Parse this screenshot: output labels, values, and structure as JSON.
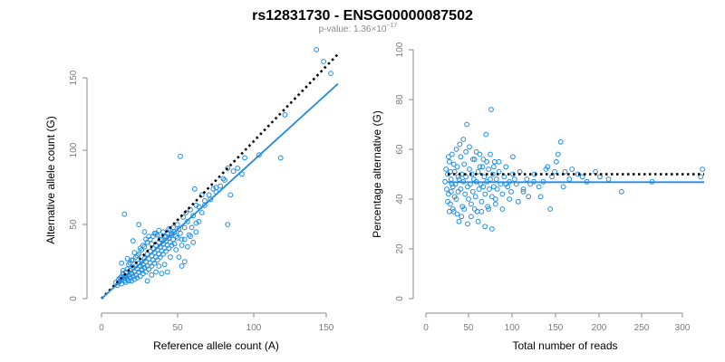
{
  "title": "rs12831730 - ENSG00000087502",
  "subtitle": {
    "prefix": "p-value: 1.36",
    "times": "×",
    "base": "10",
    "exponent": "−17"
  },
  "colors": {
    "points": "#1f8ce6",
    "fit": "#1f8ce6",
    "reference": "#000000",
    "axis": "#8a8a8a",
    "tick_text": "#7a7a7a"
  },
  "chart_data": [
    {
      "type": "scatter",
      "xlabel": "Reference allele count (A)",
      "ylabel": "Alternative allele count (G)",
      "xlim": [
        0,
        160
      ],
      "ylim": [
        0,
        160
      ],
      "xticks": [
        "0",
        "50",
        "100",
        "150"
      ],
      "yticks": [
        "0",
        "50",
        "100",
        "150"
      ],
      "grid": false,
      "lines": [
        {
          "style": "dotted",
          "color": "#000000",
          "x": [
            0,
            165
          ],
          "y": [
            0,
            165
          ]
        },
        {
          "style": "solid",
          "color": "#1f8ce6",
          "x": [
            0,
            165
          ],
          "y": [
            0,
            145
          ]
        }
      ],
      "points": [
        [
          10,
          11
        ],
        [
          11,
          9
        ],
        [
          12,
          13
        ],
        [
          12,
          11
        ],
        [
          13,
          14
        ],
        [
          13,
          12
        ],
        [
          14,
          15
        ],
        [
          14,
          10
        ],
        [
          15,
          13
        ],
        [
          15,
          17
        ],
        [
          16,
          14
        ],
        [
          16,
          12
        ],
        [
          17,
          18
        ],
        [
          17,
          15
        ],
        [
          17,
          11
        ],
        [
          18,
          13
        ],
        [
          18,
          20
        ],
        [
          19,
          16
        ],
        [
          19,
          12
        ],
        [
          20,
          19
        ],
        [
          20,
          14
        ],
        [
          20,
          24
        ],
        [
          21,
          17
        ],
        [
          21,
          12
        ],
        [
          22,
          21
        ],
        [
          22,
          15
        ],
        [
          22,
          26
        ],
        [
          23,
          18
        ],
        [
          23,
          13
        ],
        [
          24,
          22
        ],
        [
          24,
          16
        ],
        [
          24,
          28
        ],
        [
          25,
          20
        ],
        [
          25,
          14
        ],
        [
          26,
          24
        ],
        [
          26,
          18
        ],
        [
          26,
          30
        ],
        [
          27,
          22
        ],
        [
          27,
          15
        ],
        [
          28,
          25
        ],
        [
          28,
          19
        ],
        [
          28,
          33
        ],
        [
          29,
          23
        ],
        [
          29,
          17
        ],
        [
          30,
          27
        ],
        [
          30,
          21
        ],
        [
          30,
          35
        ],
        [
          31,
          25
        ],
        [
          31,
          18
        ],
        [
          32,
          30
        ],
        [
          32,
          22
        ],
        [
          32,
          38
        ],
        [
          33,
          27
        ],
        [
          33,
          20
        ],
        [
          34,
          32
        ],
        [
          34,
          24
        ],
        [
          34,
          40
        ],
        [
          35,
          29
        ],
        [
          35,
          22
        ],
        [
          36,
          34
        ],
        [
          36,
          26
        ],
        [
          36,
          42
        ],
        [
          37,
          31
        ],
        [
          37,
          24
        ],
        [
          38,
          36
        ],
        [
          38,
          28
        ],
        [
          38,
          44
        ],
        [
          39,
          33
        ],
        [
          39,
          26
        ],
        [
          40,
          38
        ],
        [
          40,
          30
        ],
        [
          40,
          46
        ],
        [
          41,
          35
        ],
        [
          41,
          28
        ],
        [
          42,
          40
        ],
        [
          42,
          32
        ],
        [
          43,
          37
        ],
        [
          43,
          30
        ],
        [
          44,
          42
        ],
        [
          44,
          34
        ],
        [
          45,
          39
        ],
        [
          45,
          32
        ],
        [
          46,
          44
        ],
        [
          46,
          36
        ],
        [
          47,
          41
        ],
        [
          47,
          34
        ],
        [
          48,
          46
        ],
        [
          48,
          38
        ],
        [
          49,
          43
        ],
        [
          49,
          36
        ],
        [
          50,
          48
        ],
        [
          50,
          40
        ],
        [
          51,
          45
        ],
        [
          52,
          42
        ],
        [
          53,
          50
        ],
        [
          54,
          47
        ],
        [
          55,
          44
        ],
        [
          56,
          40
        ],
        [
          57,
          55
        ],
        [
          58,
          48
        ],
        [
          59,
          58
        ],
        [
          60,
          52
        ],
        [
          62,
          60
        ],
        [
          64,
          56
        ],
        [
          66,
          63
        ],
        [
          68,
          62
        ],
        [
          70,
          70
        ],
        [
          72,
          66
        ],
        [
          75,
          70
        ],
        [
          78,
          74
        ],
        [
          80,
          72
        ],
        [
          83,
          76
        ],
        [
          86,
          80
        ],
        [
          88,
          88
        ],
        [
          90,
          70
        ],
        [
          95,
          88
        ],
        [
          100,
          95
        ],
        [
          110,
          97
        ],
        [
          125,
          95
        ],
        [
          128,
          124
        ],
        [
          150,
          168
        ],
        [
          155,
          160
        ],
        [
          160,
          152
        ],
        [
          16,
          57
        ],
        [
          18,
          27
        ],
        [
          22,
          39
        ],
        [
          26,
          50
        ],
        [
          28,
          20
        ],
        [
          30,
          45
        ],
        [
          32,
          12
        ],
        [
          35,
          16
        ],
        [
          38,
          18
        ],
        [
          40,
          22
        ],
        [
          42,
          17
        ],
        [
          44,
          23
        ],
        [
          46,
          18
        ],
        [
          48,
          28
        ],
        [
          52,
          33
        ],
        [
          54,
          28
        ],
        [
          56,
          22
        ],
        [
          58,
          25
        ],
        [
          60,
          35
        ],
        [
          62,
          42
        ],
        [
          64,
          38
        ],
        [
          66,
          45
        ],
        [
          68,
          52
        ],
        [
          70,
          58
        ],
        [
          72,
          63
        ],
        [
          76,
          67
        ],
        [
          80,
          75
        ],
        [
          85,
          81
        ],
        [
          92,
          86
        ],
        [
          55,
          96
        ],
        [
          65,
          74
        ],
        [
          88,
          50
        ],
        [
          98,
          84
        ],
        [
          14,
          24
        ],
        [
          15,
          19
        ],
        [
          19,
          23
        ],
        [
          21,
          26
        ],
        [
          23,
          31
        ],
        [
          25,
          29
        ],
        [
          27,
          34
        ],
        [
          29,
          36
        ],
        [
          31,
          40
        ],
        [
          33,
          42
        ],
        [
          35,
          37
        ],
        [
          37,
          44
        ],
        [
          39,
          43
        ],
        [
          41,
          40
        ],
        [
          43,
          45
        ],
        [
          45,
          42
        ],
        [
          47,
          47
        ],
        [
          49,
          44
        ],
        [
          51,
          37
        ],
        [
          53,
          41
        ],
        [
          56,
          36
        ],
        [
          58,
          40
        ],
        [
          61,
          43
        ],
        [
          63,
          48
        ],
        [
          66,
          51
        ]
      ]
    },
    {
      "type": "scatter",
      "xlabel": "Total number of reads",
      "ylabel": "Percentage alternative (G)",
      "xlim": [
        0,
        320
      ],
      "ylim": [
        0,
        100
      ],
      "xticks": [
        "0",
        "50",
        "100",
        "150",
        "200",
        "250",
        "300"
      ],
      "yticks": [
        "0",
        "20",
        "40",
        "60",
        "80",
        "100"
      ],
      "grid": false,
      "lines": [
        {
          "style": "dotted",
          "color": "#000000",
          "x": [
            25,
            320
          ],
          "y": [
            50,
            50
          ]
        },
        {
          "style": "solid",
          "color": "#1f8ce6",
          "x": [
            25,
            320
          ],
          "y": [
            46.8,
            46.8
          ]
        }
      ],
      "points": [
        [
          22,
          47
        ],
        [
          23,
          52
        ],
        [
          24,
          44
        ],
        [
          25,
          50
        ],
        [
          26,
          42
        ],
        [
          27,
          55
        ],
        [
          28,
          38
        ],
        [
          29,
          48
        ],
        [
          30,
          58
        ],
        [
          31,
          45
        ],
        [
          32,
          35
        ],
        [
          33,
          51
        ],
        [
          34,
          46
        ],
        [
          35,
          40
        ],
        [
          36,
          53
        ],
        [
          37,
          43
        ],
        [
          38,
          48
        ],
        [
          39,
          62
        ],
        [
          40,
          44
        ],
        [
          41,
          50
        ],
        [
          42,
          37
        ],
        [
          43,
          47
        ],
        [
          44,
          54
        ],
        [
          45,
          42
        ],
        [
          46,
          49
        ],
        [
          47,
          70
        ],
        [
          48,
          45
        ],
        [
          49,
          40
        ],
        [
          50,
          52
        ],
        [
          51,
          46
        ],
        [
          52,
          38
        ],
        [
          53,
          50
        ],
        [
          54,
          43
        ],
        [
          55,
          48
        ],
        [
          56,
          56
        ],
        [
          57,
          41
        ],
        [
          58,
          47
        ],
        [
          59,
          35
        ],
        [
          60,
          51
        ],
        [
          61,
          44
        ],
        [
          62,
          58
        ],
        [
          63,
          46
        ],
        [
          64,
          39
        ],
        [
          65,
          53
        ],
        [
          66,
          45
        ],
        [
          67,
          49
        ],
        [
          68,
          42
        ],
        [
          69,
          66
        ],
        [
          70,
          47
        ],
        [
          71,
          37
        ],
        [
          72,
          52
        ],
        [
          73,
          44
        ],
        [
          74,
          48
        ],
        [
          75,
          76
        ],
        [
          76,
          41
        ],
        [
          77,
          50
        ],
        [
          78,
          45
        ],
        [
          79,
          55
        ],
        [
          80,
          40
        ],
        [
          81,
          48
        ],
        [
          82,
          44
        ],
        [
          84,
          51
        ],
        [
          86,
          46
        ],
        [
          88,
          42
        ],
        [
          90,
          49
        ],
        [
          92,
          53
        ],
        [
          94,
          45
        ],
        [
          96,
          47
        ],
        [
          98,
          43
        ],
        [
          100,
          50
        ],
        [
          102,
          48
        ],
        [
          104,
          46
        ],
        [
          108,
          51
        ],
        [
          112,
          44
        ],
        [
          116,
          48
        ],
        [
          120,
          46
        ],
        [
          125,
          50
        ],
        [
          130,
          45
        ],
        [
          135,
          47
        ],
        [
          140,
          53
        ],
        [
          145,
          49
        ],
        [
          150,
          55
        ],
        [
          155,
          63
        ],
        [
          160,
          51
        ],
        [
          165,
          48
        ],
        [
          175,
          50
        ],
        [
          185,
          47
        ],
        [
          200,
          49
        ],
        [
          225,
          43
        ],
        [
          260,
          47
        ],
        [
          316,
          49
        ],
        [
          318,
          52
        ],
        [
          25,
          39
        ],
        [
          26,
          57
        ],
        [
          27,
          35
        ],
        [
          28,
          51
        ],
        [
          29,
          43
        ],
        [
          30,
          46
        ],
        [
          31,
          36
        ],
        [
          32,
          54
        ],
        [
          33,
          41
        ],
        [
          35,
          60
        ],
        [
          36,
          34
        ],
        [
          37,
          49
        ],
        [
          38,
          31
        ],
        [
          40,
          57
        ],
        [
          41,
          33
        ],
        [
          43,
          64
        ],
        [
          44,
          36
        ],
        [
          46,
          59
        ],
        [
          48,
          30
        ],
        [
          50,
          61
        ],
        [
          52,
          33
        ],
        [
          54,
          56
        ],
        [
          56,
          36
        ],
        [
          58,
          59
        ],
        [
          60,
          31
        ],
        [
          62,
          53
        ],
        [
          64,
          35
        ],
        [
          66,
          56
        ],
        [
          68,
          29
        ],
        [
          70,
          55
        ],
        [
          72,
          36
        ],
        [
          74,
          58
        ],
        [
          76,
          28
        ],
        [
          78,
          53
        ],
        [
          80,
          38
        ],
        [
          84,
          55
        ],
        [
          88,
          36
        ],
        [
          92,
          46
        ],
        [
          96,
          40
        ],
        [
          100,
          57
        ],
        [
          106,
          39
        ],
        [
          112,
          43
        ],
        [
          118,
          41
        ],
        [
          124,
          47
        ],
        [
          132,
          41
        ],
        [
          138,
          52
        ],
        [
          143,
          36
        ],
        [
          148,
          51
        ],
        [
          152,
          58
        ],
        [
          158,
          45
        ],
        [
          168,
          52
        ],
        [
          180,
          49
        ],
        [
          195,
          51
        ],
        [
          210,
          48
        ]
      ]
    }
  ]
}
